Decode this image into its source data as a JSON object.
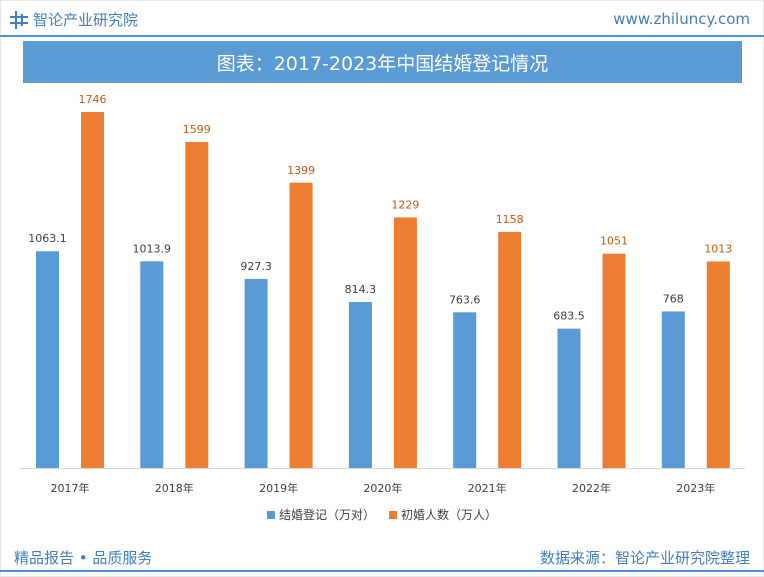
{
  "header": {
    "brand_name": "智论产业研究院",
    "site_url": "www.zhiluncy.com"
  },
  "footer": {
    "slogan": "精品报告 • 品质服务",
    "source": "数据来源：智论产业研究院整理"
  },
  "chart_data": {
    "type": "bar",
    "title": "图表：2017-2023年中国结婚登记情况",
    "categories": [
      "2017年",
      "2018年",
      "2019年",
      "2020年",
      "2021年",
      "2022年",
      "2023年"
    ],
    "series": [
      {
        "name": "结婚登记（万对）",
        "values": [
          1063.1,
          1013.9,
          927.3,
          814.3,
          763.6,
          683.5,
          768
        ],
        "labels": [
          "1063.1",
          "1013.9",
          "927.3",
          "814.3",
          "763.6",
          "683.5",
          "768"
        ],
        "color": "#5b9bd5",
        "label_color": "#404040"
      },
      {
        "name": "初婚人数（万人）",
        "values": [
          1746,
          1599,
          1399,
          1229,
          1158,
          1051,
          1013
        ],
        "labels": [
          "1746",
          "1599",
          "1399",
          "1229",
          "1158",
          "1051",
          "1013"
        ],
        "color": "#ed7d31",
        "label_color": "#c55a11"
      }
    ],
    "ylim": [
      0,
      1746
    ],
    "grid": false,
    "legend_position": "bottom"
  }
}
